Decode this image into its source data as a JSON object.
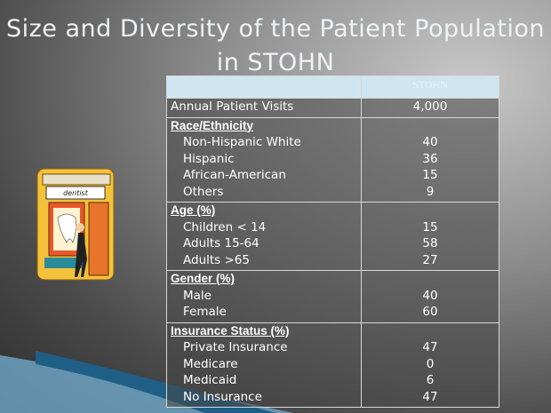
{
  "title": "Size and Diversity of the Patient Population in STOHN",
  "sign": "dentist",
  "table": {
    "header": "STOHN",
    "rows": [
      {
        "label": "Annual Patient Visits",
        "value": "4,000"
      }
    ],
    "sections": [
      {
        "heading": "Race/Ethnicity",
        "items": [
          {
            "label": "Non-Hispanic White",
            "value": 40
          },
          {
            "label": "Hispanic",
            "value": 36
          },
          {
            "label": "African-American",
            "value": 15
          },
          {
            "label": "Others",
            "value": 9
          }
        ]
      },
      {
        "heading": "Age (%)",
        "items": [
          {
            "label": "Children < 14",
            "value": 15
          },
          {
            "label": "Adults 15-64",
            "value": 58
          },
          {
            "label": "Adults >65",
            "value": 27
          }
        ]
      },
      {
        "heading": "Gender (%)",
        "items": [
          {
            "label": "Male",
            "value": 40
          },
          {
            "label": "Female",
            "value": 60
          }
        ]
      },
      {
        "heading": "Insurance Status (%)",
        "items": [
          {
            "label": "Private Insurance",
            "value": 47
          },
          {
            "label": "Medicare",
            "value": 0
          },
          {
            "label": "Medicaid",
            "value": 6
          },
          {
            "label": "No Insurance",
            "value": 47
          }
        ]
      }
    ]
  }
}
